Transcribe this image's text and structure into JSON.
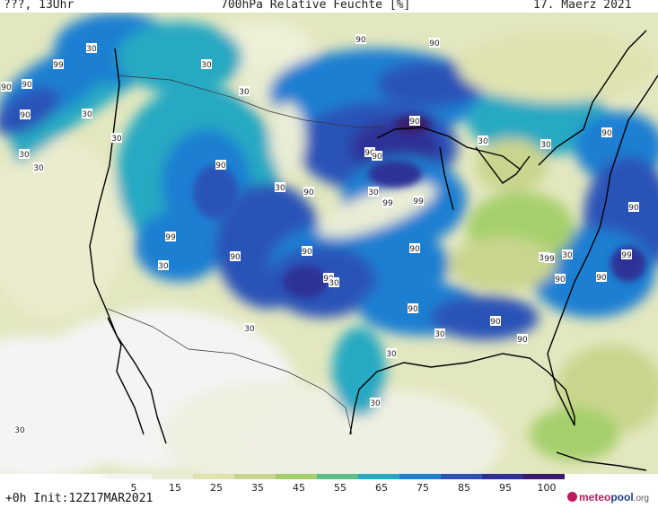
{
  "header": {
    "left": "???, 13Uhr",
    "title": "700hPa Relative Feuchte [%]",
    "date": "17. Maerz 2021"
  },
  "legend": {
    "ticks": [
      "5",
      "15",
      "25",
      "35",
      "45",
      "55",
      "65",
      "75",
      "85",
      "95",
      "100"
    ],
    "colors": [
      "#f4f4f4",
      "#e9edd6",
      "#dfe3b0",
      "#c9d58e",
      "#a6cf6c",
      "#5cbf8a",
      "#26a9c2",
      "#1e7fd2",
      "#2b52b8",
      "#2e3096",
      "#3b1a6e"
    ]
  },
  "footer": {
    "run": "+0h  Init:12Z17MAR2021"
  },
  "logo": {
    "text_a": "meteo",
    "text_b": "pool",
    "text_c": ".org"
  },
  "contour_labels": [
    "30",
    "99",
    "90",
    "90",
    "30",
    "30",
    "30",
    "30",
    "30",
    "90",
    "30",
    "90",
    "99",
    "90",
    "90",
    "90",
    "90",
    "30",
    "90",
    "99",
    "90",
    "90",
    "30",
    "90",
    "90",
    "90",
    "90",
    "30",
    "30",
    "90",
    "30",
    "90",
    "90",
    "99",
    "30",
    "90",
    "30",
    "30",
    "90",
    "30",
    "30",
    "90",
    "99",
    "99",
    "30",
    "30",
    "30"
  ]
}
